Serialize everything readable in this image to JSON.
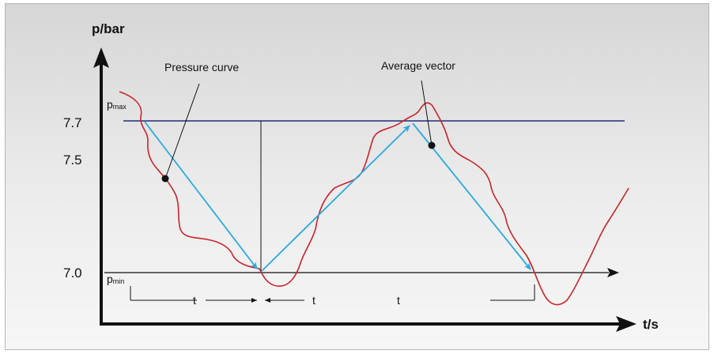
{
  "diagram": {
    "y_axis_label": "p/bar",
    "x_axis_label": "t/s",
    "y_ticks": [
      "7.7",
      "7.5",
      "7.0"
    ],
    "pmax": {
      "base": "p",
      "sub": "max"
    },
    "pmin": {
      "base": "p",
      "sub": "min"
    },
    "annotation_pressure": "Pressure curve",
    "annotation_vector": "Average vector",
    "interval_labels": [
      "t",
      "t",
      "t"
    ],
    "colors": {
      "background_top": "#d9d9d9",
      "background_bottom": "#f4f4f4",
      "border": "#b5b5b5",
      "pressure_curve": "#c8242b",
      "average_vector": "#29a9e1",
      "pmax_line": "#1f2d7a",
      "axes": "#111111"
    }
  }
}
